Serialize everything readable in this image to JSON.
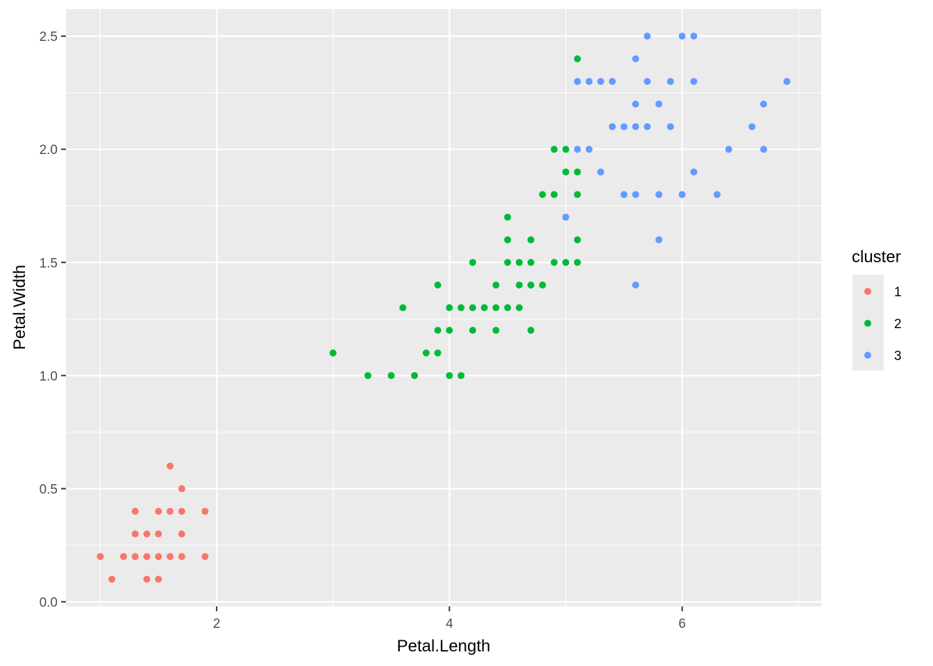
{
  "chart_data": {
    "type": "scatter",
    "title": "",
    "xlabel": "Petal.Length",
    "ylabel": "Petal.Width",
    "xlim": [
      0.705,
      7.195
    ],
    "ylim": [
      -0.02,
      2.62
    ],
    "x_ticks": [
      2,
      4,
      6
    ],
    "x_tick_labels": [
      "2",
      "4",
      "6"
    ],
    "y_ticks": [
      0.0,
      0.5,
      1.0,
      1.5,
      2.0,
      2.5
    ],
    "y_tick_labels": [
      "0.0",
      "0.5",
      "1.0",
      "1.5",
      "2.0",
      "2.5"
    ],
    "grid": true,
    "legend": {
      "title": "cluster",
      "position": "right"
    },
    "series": [
      {
        "name": "1",
        "color": "#F8766D",
        "points": [
          [
            1.0,
            0.2
          ],
          [
            1.1,
            0.1
          ],
          [
            1.2,
            0.2
          ],
          [
            1.3,
            0.2
          ],
          [
            1.3,
            0.3
          ],
          [
            1.3,
            0.4
          ],
          [
            1.4,
            0.1
          ],
          [
            1.4,
            0.2
          ],
          [
            1.4,
            0.3
          ],
          [
            1.5,
            0.1
          ],
          [
            1.5,
            0.2
          ],
          [
            1.5,
            0.3
          ],
          [
            1.5,
            0.4
          ],
          [
            1.6,
            0.2
          ],
          [
            1.6,
            0.4
          ],
          [
            1.6,
            0.6
          ],
          [
            1.7,
            0.2
          ],
          [
            1.7,
            0.3
          ],
          [
            1.7,
            0.4
          ],
          [
            1.7,
            0.5
          ],
          [
            1.9,
            0.2
          ],
          [
            1.9,
            0.4
          ]
        ]
      },
      {
        "name": "2",
        "color": "#00BA38",
        "points": [
          [
            3.0,
            1.1
          ],
          [
            3.3,
            1.0
          ],
          [
            3.5,
            1.0
          ],
          [
            3.6,
            1.3
          ],
          [
            3.7,
            1.0
          ],
          [
            3.8,
            1.1
          ],
          [
            3.9,
            1.1
          ],
          [
            3.9,
            1.2
          ],
          [
            3.9,
            1.4
          ],
          [
            4.0,
            1.0
          ],
          [
            4.0,
            1.2
          ],
          [
            4.0,
            1.3
          ],
          [
            4.1,
            1.0
          ],
          [
            4.1,
            1.3
          ],
          [
            4.2,
            1.2
          ],
          [
            4.2,
            1.3
          ],
          [
            4.2,
            1.5
          ],
          [
            4.3,
            1.3
          ],
          [
            4.4,
            1.2
          ],
          [
            4.4,
            1.3
          ],
          [
            4.4,
            1.4
          ],
          [
            4.5,
            1.3
          ],
          [
            4.5,
            1.5
          ],
          [
            4.5,
            1.6
          ],
          [
            4.5,
            1.7
          ],
          [
            4.6,
            1.3
          ],
          [
            4.6,
            1.4
          ],
          [
            4.6,
            1.5
          ],
          [
            4.7,
            1.2
          ],
          [
            4.7,
            1.4
          ],
          [
            4.7,
            1.5
          ],
          [
            4.7,
            1.6
          ],
          [
            4.8,
            1.4
          ],
          [
            4.8,
            1.8
          ],
          [
            4.9,
            1.5
          ],
          [
            4.9,
            1.8
          ],
          [
            4.9,
            2.0
          ],
          [
            5.0,
            1.5
          ],
          [
            5.0,
            1.9
          ],
          [
            5.0,
            2.0
          ],
          [
            5.1,
            1.5
          ],
          [
            5.1,
            1.6
          ],
          [
            5.1,
            1.8
          ],
          [
            5.1,
            1.9
          ],
          [
            5.1,
            2.4
          ]
        ]
      },
      {
        "name": "3",
        "color": "#619CFF",
        "points": [
          [
            5.0,
            1.7
          ],
          [
            5.1,
            2.0
          ],
          [
            5.1,
            2.3
          ],
          [
            5.2,
            2.0
          ],
          [
            5.2,
            2.3
          ],
          [
            5.3,
            1.9
          ],
          [
            5.3,
            2.3
          ],
          [
            5.4,
            2.1
          ],
          [
            5.4,
            2.3
          ],
          [
            5.5,
            1.8
          ],
          [
            5.5,
            2.1
          ],
          [
            5.6,
            1.4
          ],
          [
            5.6,
            1.8
          ],
          [
            5.6,
            2.1
          ],
          [
            5.6,
            2.2
          ],
          [
            5.6,
            2.4
          ],
          [
            5.7,
            2.1
          ],
          [
            5.7,
            2.3
          ],
          [
            5.7,
            2.5
          ],
          [
            5.8,
            1.6
          ],
          [
            5.8,
            1.8
          ],
          [
            5.8,
            2.2
          ],
          [
            5.9,
            2.1
          ],
          [
            5.9,
            2.3
          ],
          [
            6.0,
            1.8
          ],
          [
            6.0,
            2.5
          ],
          [
            6.1,
            1.9
          ],
          [
            6.1,
            2.3
          ],
          [
            6.1,
            2.5
          ],
          [
            6.3,
            1.8
          ],
          [
            6.4,
            2.0
          ],
          [
            6.6,
            2.1
          ],
          [
            6.7,
            2.0
          ],
          [
            6.7,
            2.2
          ],
          [
            6.9,
            2.3
          ]
        ]
      }
    ]
  }
}
